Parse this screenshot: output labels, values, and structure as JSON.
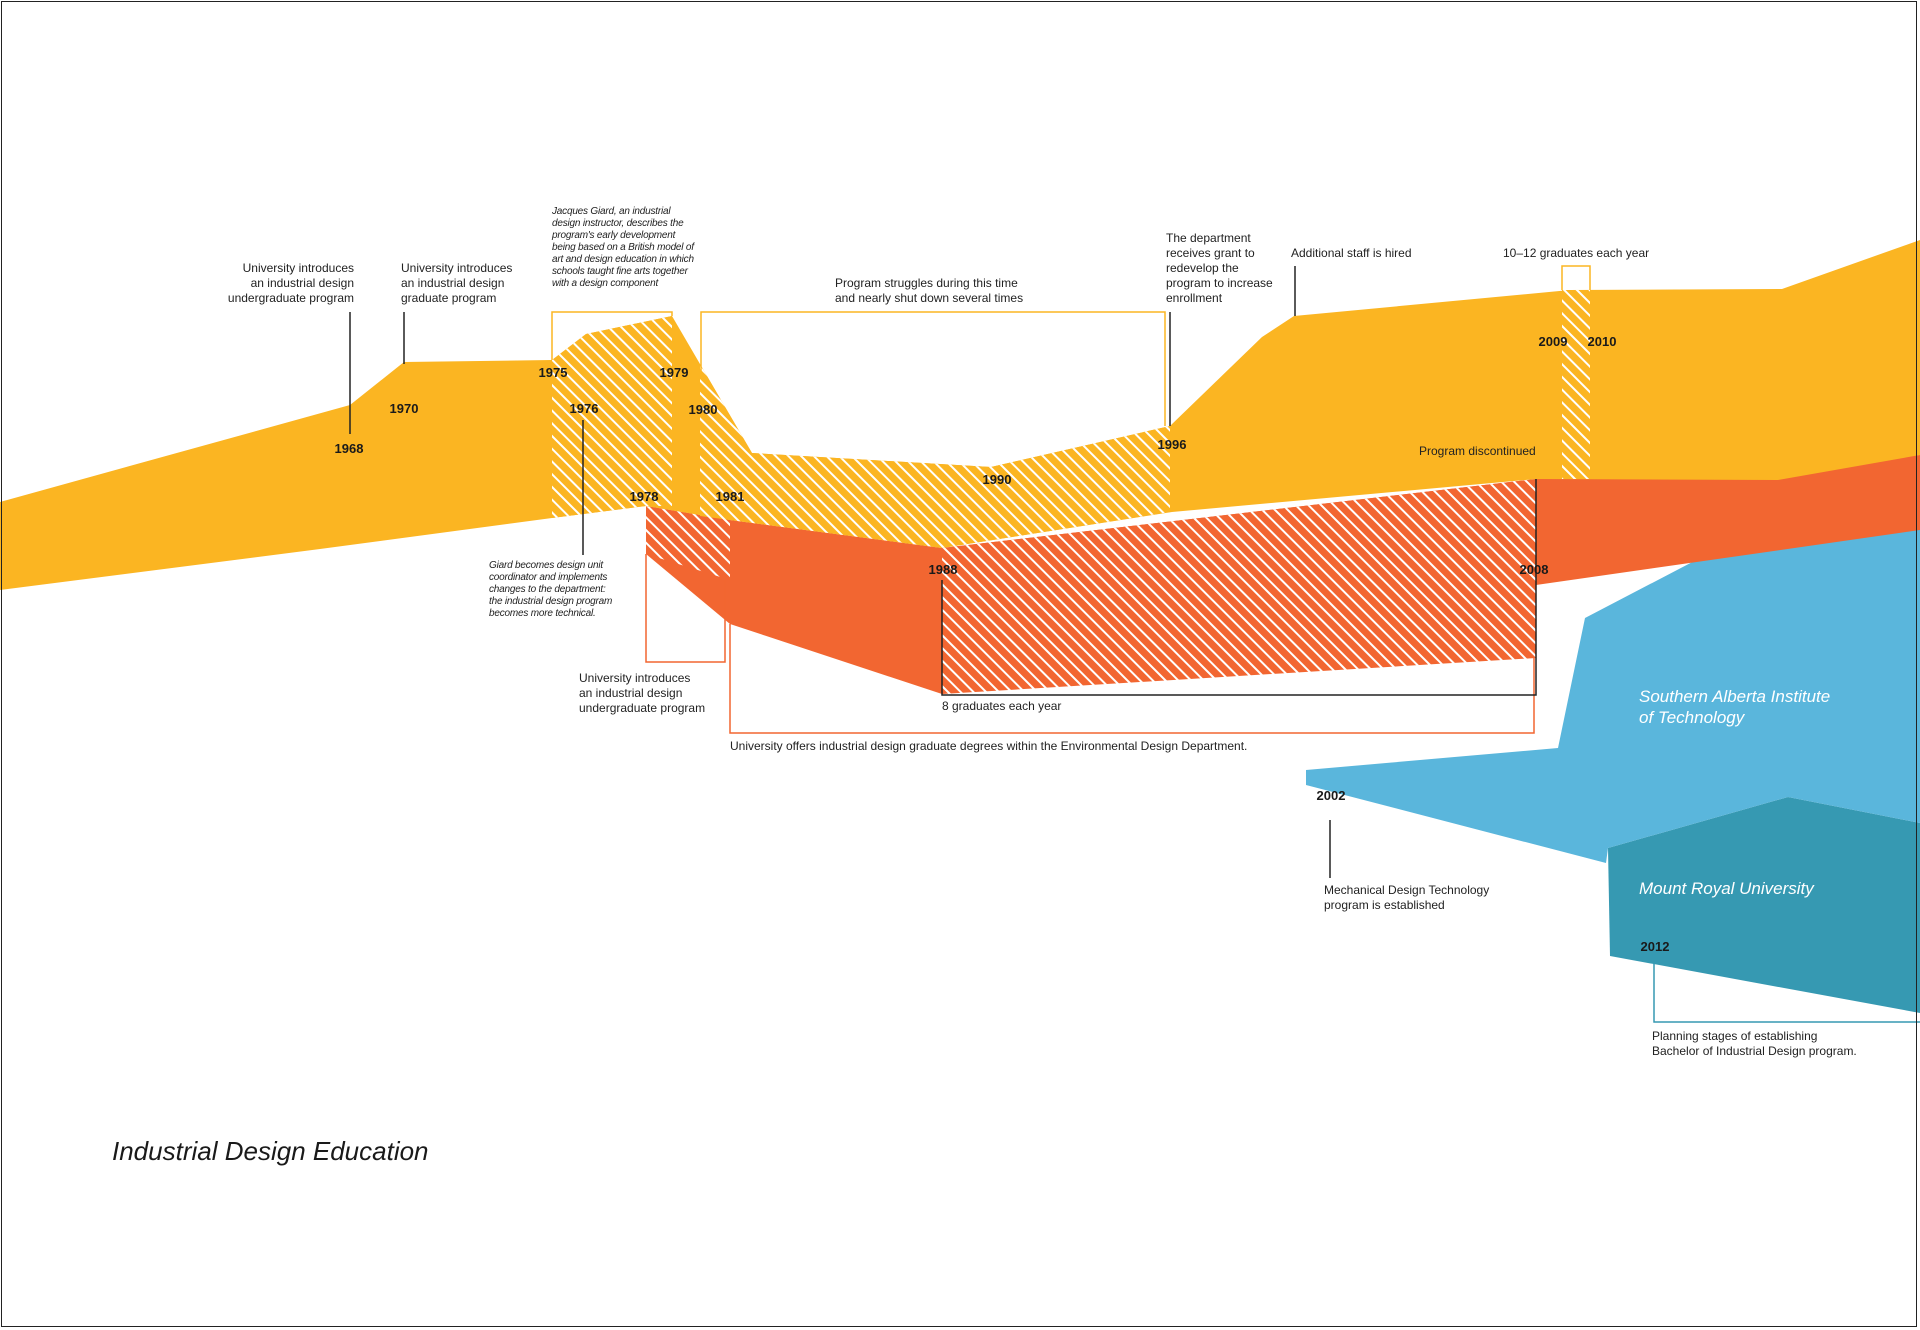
{
  "title": "Industrial Design Education",
  "colors": {
    "university": "#fbb522",
    "graduate": "#f26631",
    "sait": "#5ab6dc",
    "mru": "#3699b2",
    "hatch": "#ffffff"
  },
  "streams": {
    "sait": "Southern Alberta Institute\nof Technology",
    "mru": "Mount Royal University"
  },
  "years": {
    "y1968": "1968",
    "y1970": "1970",
    "y1975": "1975",
    "y1976": "1976",
    "y1978": "1978",
    "y1979": "1979",
    "y1980": "1980",
    "y1981": "1981",
    "y1988": "1988",
    "y1990": "1990",
    "y1996": "1996",
    "y2002": "2002",
    "y2008": "2008",
    "y2009": "2009",
    "y2010": "2010",
    "y2012": "2012"
  },
  "annotations": {
    "undergrad_1968": "University introduces\nan industrial design\nundergraduate program",
    "grad_1970": "University introduces\nan industrial design\ngraduate program",
    "giard_quote": "Jacques Giard, an industrial\ndesign instructor, describes the\nprogram's early development\nbeing based on a British model of\nart and design education in which\nschools taught fine arts together\nwith a design component",
    "giard_coordinator": "Giard becomes design unit\ncoordinator and implements\nchanges to the department:\nthe industrial design program\nbecomes more technical.",
    "undergrad_1978": "University introduces\nan industrial design\nundergraduate program",
    "struggles": "Program struggles during this time\nand nearly shut down several times",
    "grant_1996": "The department\nreceives grant to\nredevelop the\nprogram to increase\nenrollment",
    "staff": "Additional staff is hired",
    "grads_1012": "10–12 graduates each year",
    "discontinued": "Program discontinued",
    "grads_8": "8 graduates each year",
    "env_design": "University offers industrial design graduate degrees within the Environmental Design Department.",
    "mech_design": "Mechanical Design Technology\nprogram is established",
    "planning": "Planning stages of establishing\nBachelor of Industrial Design program."
  }
}
